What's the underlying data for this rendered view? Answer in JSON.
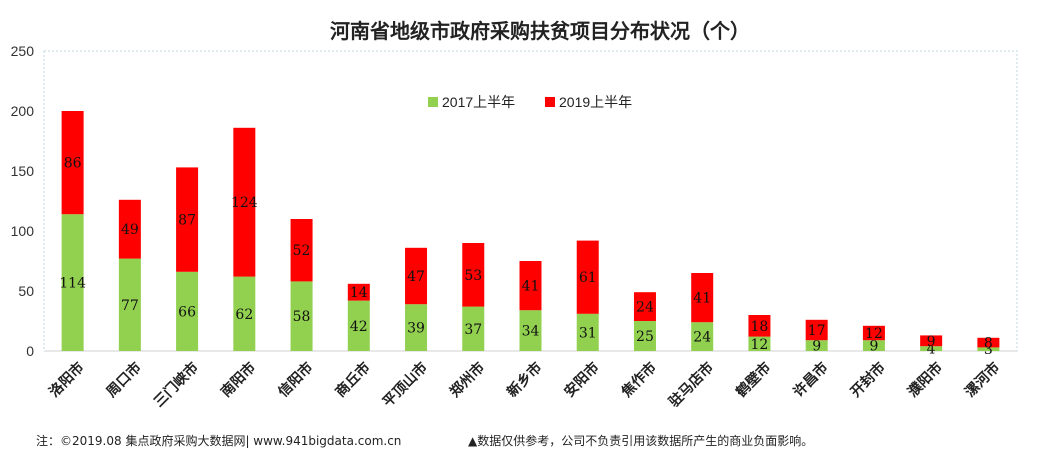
{
  "chart_data": {
    "type": "bar",
    "stacked": true,
    "title": "河南省地级市政府采购扶贫项目分布状况（个）",
    "categories": [
      "洛阳市",
      "周口市",
      "三门峡市",
      "南阳市",
      "信阳市",
      "商丘市",
      "平顶山市",
      "郑州市",
      "新乡市",
      "安阳市",
      "焦作市",
      "驻马店市",
      "鹤壁市",
      "许昌市",
      "开封市",
      "濮阳市",
      "漯河市"
    ],
    "series": [
      {
        "name": "2017上半年",
        "color": "#92d050",
        "values": [
          114,
          77,
          66,
          62,
          58,
          42,
          39,
          37,
          34,
          31,
          25,
          24,
          12,
          9,
          9,
          4,
          3
        ]
      },
      {
        "name": "2019上半年",
        "color": "#ff0000",
        "values": [
          86,
          49,
          87,
          124,
          52,
          14,
          47,
          53,
          41,
          61,
          24,
          41,
          18,
          17,
          12,
          9,
          8
        ]
      }
    ],
    "ylim": [
      0,
      250
    ],
    "yticks": [
      "0",
      "50",
      "100",
      "150",
      "200",
      "250"
    ],
    "legend_position": "top-center",
    "grid": false
  },
  "footer": {
    "left": "注：©2019.08 集点政府采购大数据网| www.941bigdata.com.cn",
    "right": "▲数据仅供参考，公司不负责引用该数据所产生的商业负面影响。"
  }
}
